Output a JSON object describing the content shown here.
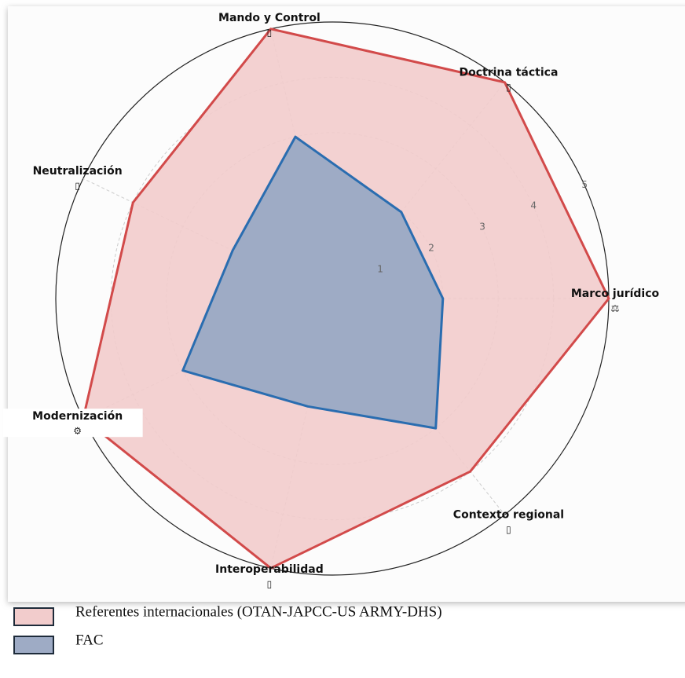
{
  "chart_data": {
    "type": "radar",
    "categories": [
      "Marco jurídico",
      "Doctrina táctica",
      "Mando y Control",
      "Neutralización",
      "Modernización",
      "Interoperabilidad",
      "Contexto regional"
    ],
    "icons": [
      "⚖",
      "▯",
      "▯",
      "▯",
      "⚙",
      "▯",
      "▯"
    ],
    "series": [
      {
        "name": "Referentes internacionales (OTAN-JAPCC-US ARMY-DHS)",
        "color": "#d24a4a",
        "fill": "#f2cccc",
        "values": [
          5,
          5,
          5,
          4,
          5,
          5,
          4
        ]
      },
      {
        "name": "FAC",
        "color": "#2a6db0",
        "fill": "#9eabc5",
        "values": [
          2,
          2,
          3,
          2,
          3,
          2,
          3
        ]
      }
    ],
    "ylim": [
      0,
      5
    ],
    "yticks": [
      1,
      2,
      3,
      4,
      5
    ],
    "grid": true
  }
}
